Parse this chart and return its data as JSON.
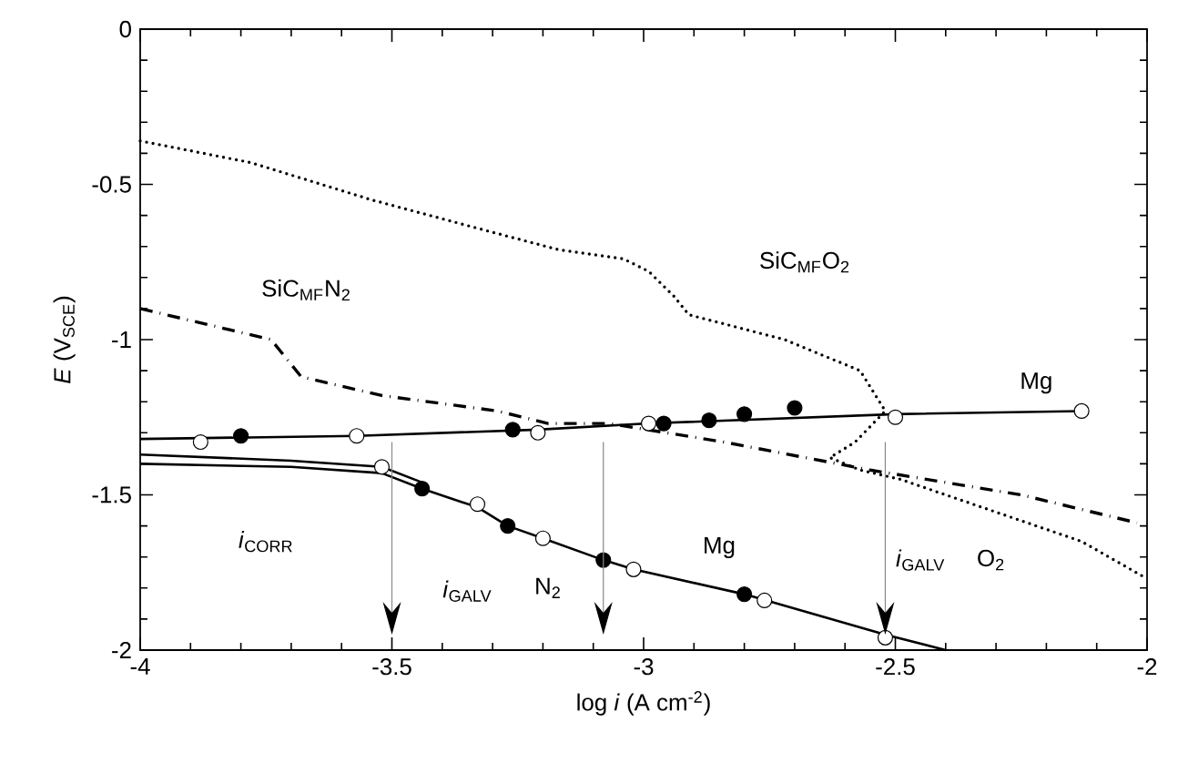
{
  "chart_data": {
    "type": "line",
    "xlabel": "log *i* (A cm$^{-2}$)",
    "ylabel": "*E* (V$_{SCE}$)",
    "xlim": [
      -4,
      -2
    ],
    "ylim": [
      -2,
      0
    ],
    "xticks": [
      -4,
      -3.5,
      -3,
      -2.5,
      -2
    ],
    "yticks": [
      -2,
      -1.5,
      -1,
      -0.5,
      0
    ],
    "series": [
      {
        "line_style": "dotted",
        "marker": "none",
        "color": "#000000",
        "x": [
          -4,
          -3.78,
          -3.54,
          -3.31,
          -3.17,
          -3.04,
          -2.99,
          -2.94,
          -2.91,
          -2.72,
          -2.57,
          -2.52,
          -2.58,
          -2.63,
          -2.57,
          -2.49,
          -2.31,
          -2.13,
          -2
        ],
        "values": [
          -0.36,
          -0.43,
          -0.55,
          -0.65,
          -0.71,
          -0.74,
          -0.78,
          -0.86,
          -0.92,
          -1.0,
          -1.1,
          -1.23,
          -1.33,
          -1.38,
          -1.42,
          -1.45,
          -1.55,
          -1.65,
          -1.77
        ]
      },
      {
        "line_style": "dashdot",
        "marker": "none",
        "color": "#000000",
        "x": [
          -4,
          -3.74,
          -3.68,
          -3.52,
          -3.29,
          -3.19,
          -3.07,
          -2.84,
          -2.55,
          -2.25,
          -2.02
        ],
        "values": [
          -0.9,
          -1.0,
          -1.12,
          -1.18,
          -1.23,
          -1.27,
          -1.27,
          -1.33,
          -1.42,
          -1.5,
          -1.59
        ]
      },
      {
        "line_style": "solid",
        "marker": "none",
        "color": "#000000",
        "x": [
          -4,
          -3.57,
          -3.21,
          -2.99,
          -2.5,
          -2.13
        ],
        "values": [
          -1.32,
          -1.31,
          -1.29,
          -1.27,
          -1.24,
          -1.23
        ]
      },
      {
        "line_style": "solid",
        "marker": "none",
        "color": "#000000",
        "x": [
          -4,
          -3.7,
          -3.52,
          -3.44,
          -3.33,
          -3.27,
          -3.2,
          -3.08,
          -3.02,
          -2.8,
          -2.52,
          -2.4
        ],
        "values": [
          -1.4,
          -1.41,
          -1.43,
          -1.48,
          -1.54,
          -1.6,
          -1.64,
          -1.71,
          -1.74,
          -1.82,
          -1.95,
          -2.0
        ]
      },
      {
        "line_style": "solid",
        "marker": "none",
        "color": "#000000",
        "x": [
          -4,
          -3.7,
          -3.52,
          -3.44
        ],
        "values": [
          -1.37,
          -1.39,
          -1.41,
          -1.46
        ]
      },
      {
        "type": "scatter",
        "marker": "circle",
        "color": "#000000",
        "x": [
          -3.8,
          -3.26,
          -2.96,
          -2.87,
          -2.8,
          -2.7,
          -3.44,
          -3.27,
          -3.08,
          -2.8
        ],
        "values": [
          -1.31,
          -1.29,
          -1.27,
          -1.26,
          -1.24,
          -1.22,
          -1.48,
          -1.6,
          -1.71,
          -1.82
        ]
      },
      {
        "type": "scatter",
        "marker": "circle",
        "color": "#ffffff",
        "x": [
          -3.88,
          -3.57,
          -3.21,
          -2.99,
          -2.5,
          -2.13,
          -3.52,
          -3.33,
          -3.2,
          -3.02,
          -2.76,
          -2.52
        ],
        "values": [
          -1.33,
          -1.31,
          -1.3,
          -1.27,
          -1.25,
          -1.23,
          -1.41,
          -1.53,
          -1.64,
          -1.74,
          -1.84,
          -1.96
        ]
      }
    ],
    "ref_lines": [
      {
        "axis": "x",
        "value": -3.5,
        "color": "#888888"
      },
      {
        "axis": "x",
        "value": -3.08,
        "color": "#888888"
      },
      {
        "axis": "x",
        "value": -2.52,
        "color": "#888888"
      }
    ],
    "annotations": [
      "SiC$_{MF}$N$_{2}$",
      "SiC$_{MF}$O$_{2}$",
      "Mg",
      "Mg",
      "*i*$_{CORR}$",
      "*i*$_{GALV}$",
      "N$_{2}$",
      "*i*$_{GALV}$",
      "O$_{2}$"
    ]
  }
}
